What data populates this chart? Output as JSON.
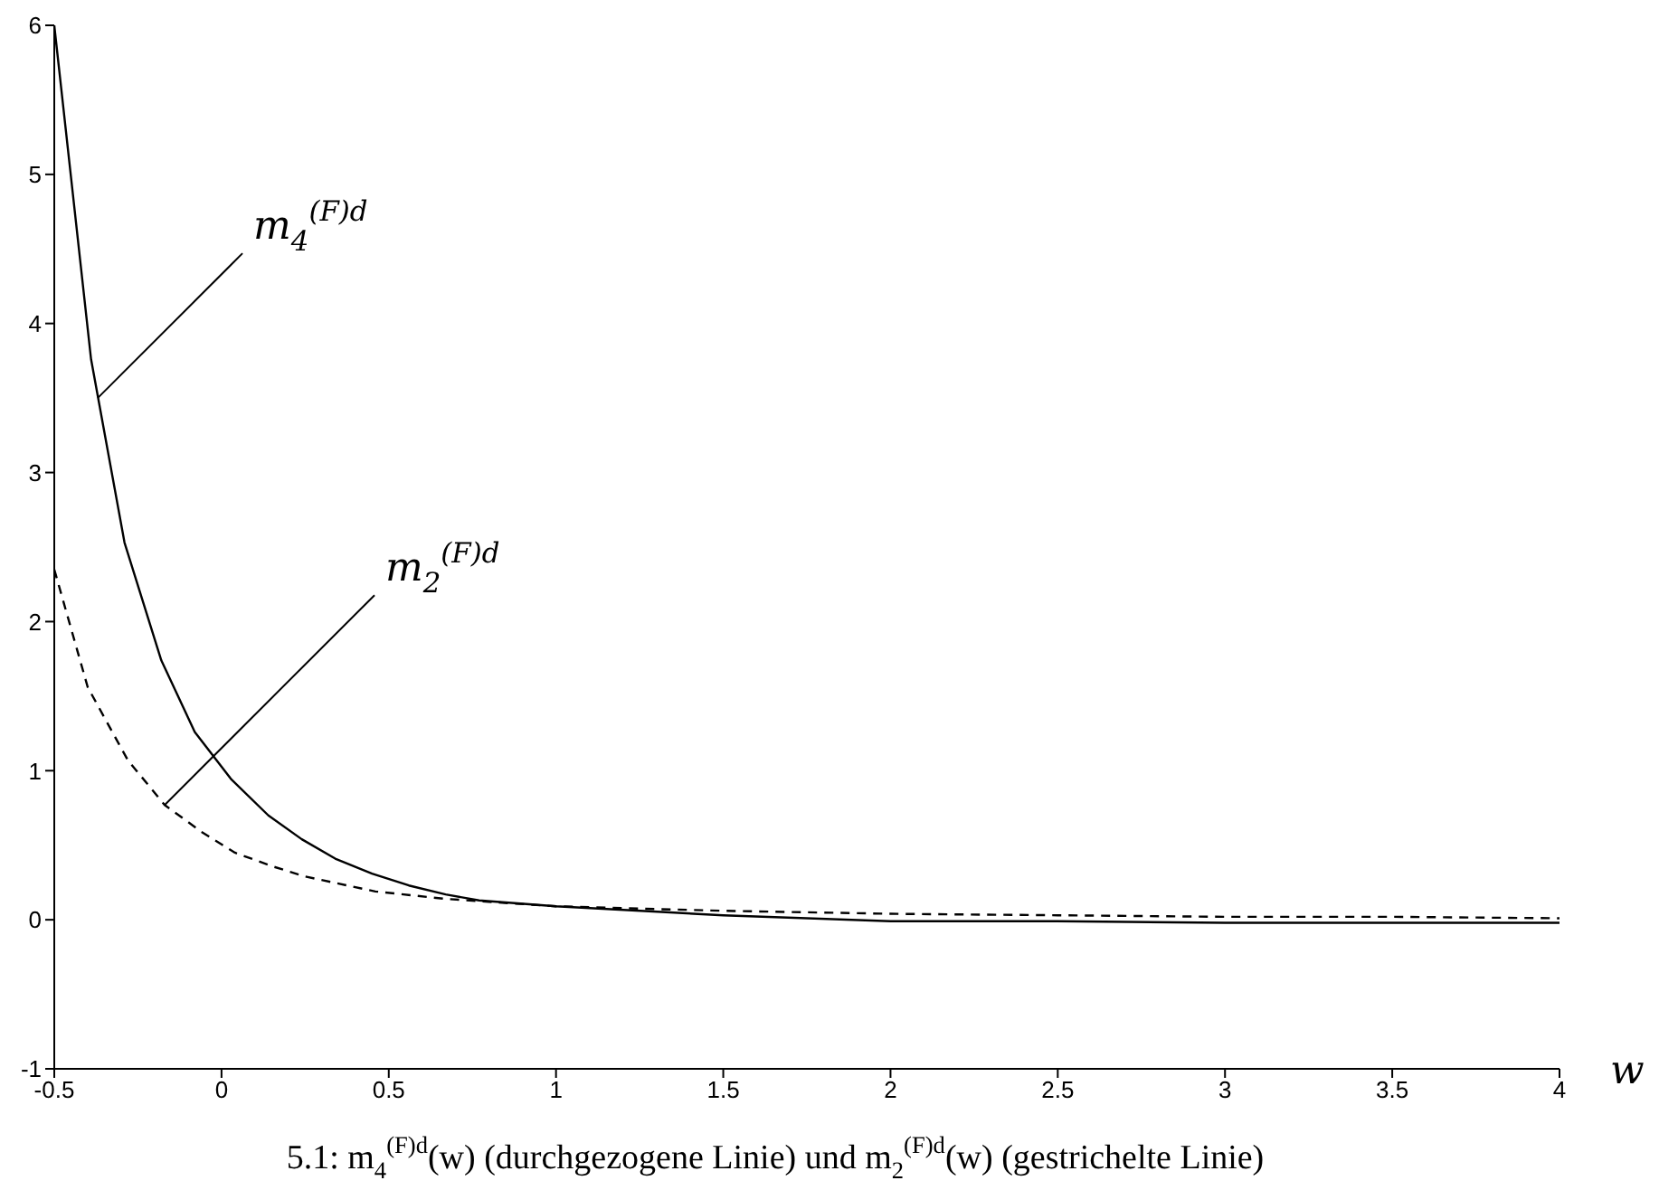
{
  "chart_data": {
    "type": "line",
    "xlabel": "w",
    "xlim": [
      -0.5,
      4
    ],
    "xticks": [
      -0.5,
      0,
      0.5,
      1,
      1.5,
      2,
      2.5,
      3,
      3.5,
      4
    ],
    "ylim": [
      -1,
      6
    ],
    "yticks": [
      -1,
      0,
      1,
      2,
      3,
      4,
      5,
      6
    ],
    "grid": false,
    "legend": false,
    "marker": "none",
    "series": [
      {
        "color": "#000000",
        "line_style": "solid",
        "x": [
          -0.5,
          -0.39,
          -0.29,
          -0.18,
          -0.08,
          0.03,
          0.14,
          0.24,
          0.34,
          0.45,
          0.56,
          0.67,
          0.77,
          1.0,
          1.5,
          2,
          2.5,
          3,
          3.5,
          4
        ],
        "values": [
          6,
          3.76,
          2.53,
          1.74,
          1.26,
          0.94,
          0.7,
          0.54,
          0.41,
          0.31,
          0.23,
          0.17,
          0.13,
          0.09,
          0.03,
          -0.01,
          -0.01,
          -0.02,
          -0.02,
          -0.02
        ]
      },
      {
        "color": "#000000",
        "line_style": "dashed",
        "x": [
          -0.5,
          -0.4,
          -0.28,
          -0.17,
          -0.06,
          0.04,
          0.15,
          0.25,
          0.46,
          0.67,
          1.0,
          1.5,
          2,
          2.5,
          3,
          3.5,
          4
        ],
        "values": [
          2.35,
          1.56,
          1.07,
          0.77,
          0.59,
          0.45,
          0.36,
          0.29,
          0.19,
          0.14,
          0.09,
          0.06,
          0.04,
          0.03,
          0.02,
          0.02,
          0.01
        ]
      }
    ],
    "annotations": [
      {
        "text": "m$_{4}$$^{(F)d}$",
        "x": -0.37,
        "y": 3.5
      },
      {
        "text": "m$_{2}$$^{(F)d}$",
        "x": -0.17,
        "y": 0.77
      },
      "5.1: m$_{4}$$^{(F)d}$(w) (durchgezogene Linie) und m$_{2}$$^{(F)d}$(w) (gestrichelte Linie)"
    ]
  }
}
